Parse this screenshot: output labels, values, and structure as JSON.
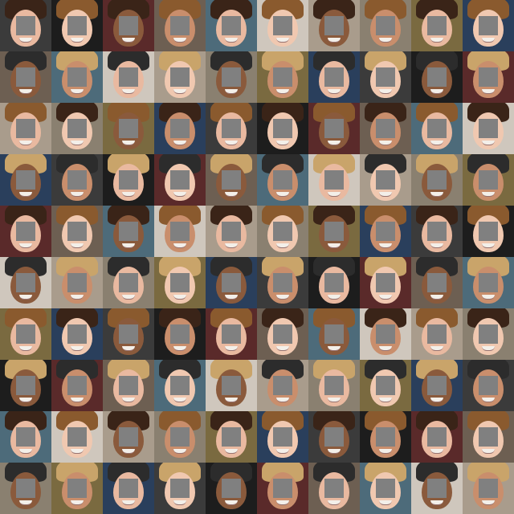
{
  "grid": {
    "rows": 10,
    "cols": 10,
    "mask_color": "#808080",
    "skin_tones": [
      "#e9b9a0",
      "#d9a27f",
      "#c98e6c",
      "#b07252",
      "#8a5a3c",
      "#6a4028",
      "#f0c8b0",
      "#d7a58a"
    ],
    "hair_tones": [
      "#3a2418",
      "#6b4a2a",
      "#c9a46a",
      "#1e1612",
      "#8a5a2e",
      "#d8c08a",
      "#2c2c2c",
      "#a8743a"
    ],
    "backgrounds": [
      "#3b3b3b",
      "#6d5f52",
      "#a99c8c",
      "#2a3f5c",
      "#5a2a2a",
      "#cfc7bd",
      "#7a6a40",
      "#1d1d1d",
      "#4d6b7a",
      "#8a8070"
    ]
  }
}
